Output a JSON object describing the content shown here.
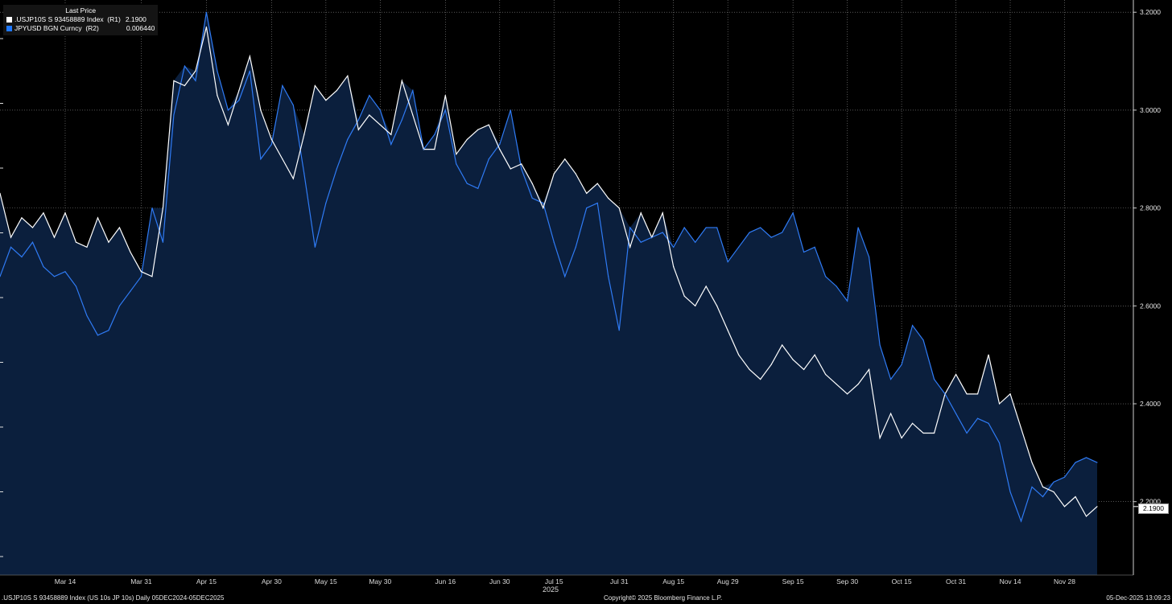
{
  "legend": {
    "title": "Last Price",
    "series": [
      {
        "name": ".USJP10S S 93458889 Index  (R1)",
        "last": "2.1900",
        "color": "#ffffff"
      },
      {
        "name": "JPYUSD BGN Curncy  (R2)",
        "last": "0.006440",
        "color": "#1e78ff"
      }
    ]
  },
  "last_value_tag": "2.1900",
  "footer": {
    "left": ".USJP10S S 93458889 Index (US 10s JP 10s) Daily 05DEC2024-05DEC2025",
    "center": "Copyright© 2025 Bloomberg Finance L.P.",
    "right": "05-Dec-2025 13:09:23"
  },
  "colors": {
    "background": "#000000",
    "area_fill": "#0b1f3d",
    "r1_line": "#ffffff",
    "r2_line": "#2f7bf5",
    "grid": "#8a8a8a"
  },
  "chart_data": {
    "type": "line",
    "x_ticks": [
      "Mar 14",
      "Mar 31",
      "Apr 15",
      "Apr 30",
      "May 15",
      "May 30",
      "Jun 16",
      "Jun 30",
      "Jul 15",
      "Jul 31",
      "Aug 15",
      "Aug 29",
      "Sep 15",
      "Sep 30",
      "Oct 15",
      "Oct 31",
      "Nov 14",
      "Nov 28"
    ],
    "x_year_label": "2025",
    "y_ticks": [
      "3.2000",
      "3.0000",
      "2.8000",
      "2.6000",
      "2.4000",
      "2.2000"
    ],
    "ylim": [
      2.05,
      3.225
    ],
    "grid": true,
    "legend_position": "top-left",
    "x": [
      "Mar 01",
      "Mar 03",
      "Mar 05",
      "Mar 07",
      "Mar 10",
      "Mar 12",
      "Mar 14",
      "Mar 17",
      "Mar 19",
      "Mar 21",
      "Mar 24",
      "Mar 26",
      "Mar 28",
      "Mar 31",
      "Apr 02",
      "Apr 04",
      "Apr 07",
      "Apr 09",
      "Apr 11",
      "Apr 15",
      "Apr 17",
      "Apr 21",
      "Apr 23",
      "Apr 25",
      "Apr 28",
      "Apr 30",
      "May 02",
      "May 06",
      "May 08",
      "May 12",
      "May 15",
      "May 19",
      "May 21",
      "May 23",
      "May 27",
      "May 30",
      "Jun 03",
      "Jun 05",
      "Jun 09",
      "Jun 11",
      "Jun 13",
      "Jun 16",
      "Jun 18",
      "Jun 20",
      "Jun 24",
      "Jun 26",
      "Jun 30",
      "Jul 02",
      "Jul 04",
      "Jul 08",
      "Jul 10",
      "Jul 15",
      "Jul 17",
      "Jul 21",
      "Jul 23",
      "Jul 25",
      "Jul 29",
      "Jul 31",
      "Aug 04",
      "Aug 06",
      "Aug 08",
      "Aug 12",
      "Aug 15",
      "Aug 19",
      "Aug 21",
      "Aug 25",
      "Aug 27",
      "Aug 29",
      "Sep 02",
      "Sep 04",
      "Sep 08",
      "Sep 10",
      "Sep 12",
      "Sep 15",
      "Sep 17",
      "Sep 19",
      "Sep 23",
      "Sep 25",
      "Sep 30",
      "Oct 02",
      "Oct 06",
      "Oct 08",
      "Oct 10",
      "Oct 15",
      "Oct 17",
      "Oct 21",
      "Oct 23",
      "Oct 27",
      "Oct 31",
      "Nov 04",
      "Nov 06",
      "Nov 10",
      "Nov 12",
      "Nov 14",
      "Nov 18",
      "Nov 20",
      "Nov 24",
      "Nov 26",
      "Nov 28",
      "Dec 02",
      "Dec 04",
      "Dec 05"
    ],
    "series": [
      {
        "name": ".USJP10S S 93458889 Index  (R1)",
        "axis": "R1",
        "values": [
          2.83,
          2.74,
          2.78,
          2.76,
          2.79,
          2.74,
          2.79,
          2.73,
          2.72,
          2.78,
          2.73,
          2.76,
          2.71,
          2.67,
          2.66,
          2.8,
          3.06,
          3.05,
          3.08,
          3.17,
          3.03,
          2.97,
          3.04,
          3.11,
          3.0,
          2.94,
          2.9,
          2.86,
          2.95,
          3.05,
          3.02,
          3.04,
          3.07,
          2.96,
          2.99,
          2.97,
          2.95,
          3.06,
          2.99,
          2.92,
          2.92,
          3.03,
          2.91,
          2.94,
          2.96,
          2.97,
          2.92,
          2.88,
          2.89,
          2.85,
          2.8,
          2.87,
          2.9,
          2.87,
          2.83,
          2.85,
          2.82,
          2.8,
          2.72,
          2.79,
          2.74,
          2.79,
          2.68,
          2.62,
          2.6,
          2.64,
          2.6,
          2.55,
          2.5,
          2.47,
          2.45,
          2.48,
          2.52,
          2.49,
          2.47,
          2.5,
          2.46,
          2.44,
          2.42,
          2.44,
          2.47,
          2.33,
          2.38,
          2.33,
          2.36,
          2.34,
          2.34,
          2.42,
          2.46,
          2.42,
          2.42,
          2.5,
          2.4,
          2.42,
          2.35,
          2.28,
          2.23,
          2.22,
          2.19,
          2.21,
          2.17,
          2.19
        ]
      },
      {
        "name": "JPYUSD BGN Curncy  (R2)",
        "axis": "R2",
        "values": [
          2.66,
          2.72,
          2.7,
          2.73,
          2.68,
          2.66,
          2.67,
          2.64,
          2.58,
          2.54,
          2.55,
          2.6,
          2.63,
          2.66,
          2.8,
          2.73,
          2.99,
          3.09,
          3.06,
          3.2,
          3.08,
          3.0,
          3.02,
          3.08,
          2.9,
          2.93,
          3.05,
          3.01,
          2.87,
          2.72,
          2.81,
          2.88,
          2.94,
          2.98,
          3.03,
          3.0,
          2.93,
          2.98,
          3.04,
          2.92,
          2.95,
          3.0,
          2.89,
          2.85,
          2.84,
          2.9,
          2.93,
          3.0,
          2.88,
          2.82,
          2.81,
          2.73,
          2.66,
          2.72,
          2.8,
          2.81,
          2.66,
          2.55,
          2.76,
          2.73,
          2.74,
          2.75,
          2.72,
          2.76,
          2.73,
          2.76,
          2.76,
          2.69,
          2.72,
          2.75,
          2.76,
          2.74,
          2.75,
          2.79,
          2.71,
          2.72,
          2.66,
          2.64,
          2.61,
          2.76,
          2.7,
          2.52,
          2.45,
          2.48,
          2.56,
          2.53,
          2.45,
          2.42,
          2.38,
          2.34,
          2.37,
          2.36,
          2.32,
          2.22,
          2.16,
          2.23,
          2.21,
          2.24,
          2.25,
          2.28,
          2.29,
          2.28
        ]
      }
    ]
  }
}
